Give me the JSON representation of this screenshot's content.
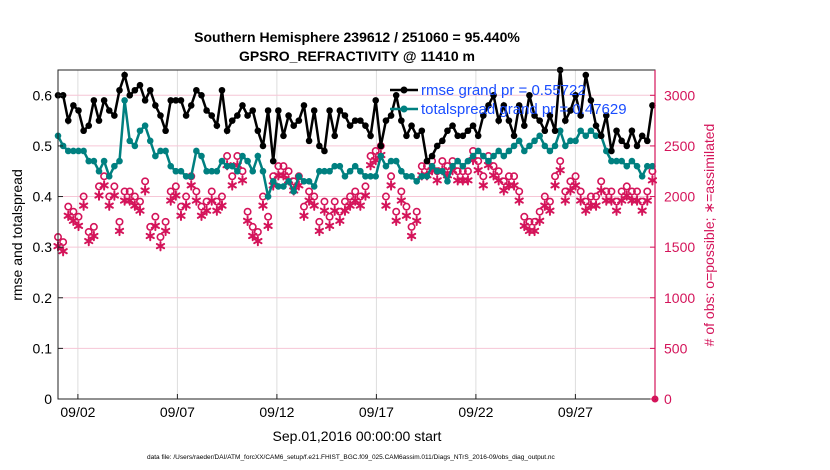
{
  "chart_data": {
    "type": "line",
    "title_line1": "Southern Hemisphere 239612 / 251060 = 95.440%",
    "title_line2": "GPSRO_REFRACTIVITY @ 11410 m",
    "xlabel": "Sep.01,2016 00:00:00 start",
    "ylabel_left": "rmse and totalspread",
    "ylabel_right": "# of obs: o=possible; ∗=assimilated",
    "xlim_days": [
      0,
      30
    ],
    "ylim_left": [
      0,
      0.65
    ],
    "ylim_right": [
      0,
      3250
    ],
    "x_tick_days": [
      1,
      6,
      11,
      16,
      21,
      26
    ],
    "x_tick_labels": [
      "09/02",
      "09/07",
      "09/12",
      "09/17",
      "09/22",
      "09/27"
    ],
    "y_left_ticks": [
      "0",
      "0.1",
      "0.2",
      "0.3",
      "0.4",
      "0.5",
      "0.6"
    ],
    "y_right_ticks": [
      "0",
      "500",
      "1000",
      "1500",
      "2000",
      "2500",
      "3000"
    ],
    "grid": "on",
    "legend_position": "top-right",
    "legend": [
      "rmse grand pr = 0.55722",
      "totalspread grand pr = 0.47629"
    ],
    "x_step_days": 0.2575,
    "colors": {
      "rmse": "#000000",
      "totalspread": "#008080",
      "obs": "#d4145a",
      "legend_text": "#1a4dff"
    },
    "series": [
      {
        "name": "rmse",
        "values": [
          0.6,
          0.6,
          0.55,
          0.58,
          0.57,
          0.53,
          0.54,
          0.59,
          0.55,
          0.59,
          0.57,
          0.56,
          0.61,
          0.64,
          0.6,
          0.61,
          0.62,
          0.59,
          0.61,
          0.58,
          0.56,
          0.53,
          0.59,
          0.59,
          0.59,
          0.56,
          0.58,
          0.61,
          0.6,
          0.57,
          0.56,
          0.54,
          0.61,
          0.53,
          0.55,
          0.56,
          0.58,
          0.56,
          0.57,
          0.53,
          0.5,
          0.57,
          0.47,
          0.57,
          0.52,
          0.56,
          0.54,
          0.55,
          0.58,
          0.51,
          0.57,
          0.5,
          0.49,
          0.57,
          0.52,
          0.57,
          0.56,
          0.54,
          0.55,
          0.55,
          0.54,
          0.52,
          0.59,
          0.5,
          0.55,
          0.56,
          0.6,
          0.55,
          0.52,
          0.54,
          0.52,
          0.53,
          0.47,
          0.48,
          0.5,
          0.51,
          0.53,
          0.54,
          0.52,
          0.52,
          0.53,
          0.54,
          0.52,
          0.56,
          0.58,
          0.6,
          0.55,
          0.58,
          0.55,
          0.52,
          0.58,
          0.54,
          0.6,
          0.56,
          0.55,
          0.53,
          0.56,
          0.53,
          0.65,
          0.55,
          0.57,
          0.6,
          0.56,
          0.64,
          0.59,
          0.54,
          0.52,
          0.56,
          0.49,
          0.53,
          0.51,
          0.5,
          0.53,
          0.5,
          0.52,
          0.51,
          0.58
        ]
      },
      {
        "name": "totalspread",
        "values": [
          0.52,
          0.5,
          0.49,
          0.49,
          0.49,
          0.49,
          0.47,
          0.47,
          0.45,
          0.47,
          0.44,
          0.46,
          0.47,
          0.59,
          0.51,
          0.5,
          0.53,
          0.54,
          0.51,
          0.48,
          0.49,
          0.49,
          0.46,
          0.45,
          0.45,
          0.44,
          0.44,
          0.49,
          0.48,
          0.45,
          0.45,
          0.45,
          0.47,
          0.46,
          0.46,
          0.45,
          0.48,
          0.47,
          0.45,
          0.48,
          0.45,
          0.4,
          0.43,
          0.42,
          0.42,
          0.43,
          0.41,
          0.44,
          0.43,
          0.43,
          0.42,
          0.45,
          0.45,
          0.45,
          0.46,
          0.46,
          0.44,
          0.45,
          0.46,
          0.45,
          0.44,
          0.44,
          0.44,
          0.48,
          0.46,
          0.47,
          0.47,
          0.45,
          0.44,
          0.44,
          0.43,
          0.44,
          0.44,
          0.46,
          0.45,
          0.45,
          0.43,
          0.46,
          0.47,
          0.46,
          0.47,
          0.48,
          0.49,
          0.48,
          0.47,
          0.48,
          0.49,
          0.48,
          0.49,
          0.5,
          0.51,
          0.49,
          0.5,
          0.51,
          0.52,
          0.5,
          0.49,
          0.5,
          0.53,
          0.5,
          0.51,
          0.51,
          0.53,
          0.52,
          0.53,
          0.52,
          0.52,
          0.49,
          0.47,
          0.47,
          0.47,
          0.46,
          0.47,
          0.46,
          0.44,
          0.46,
          0.46
        ]
      },
      {
        "name": "possible",
        "values": [
          1600,
          1550,
          1900,
          1850,
          1800,
          2000,
          1650,
          1700,
          2100,
          2200,
          2000,
          2100,
          1750,
          2050,
          2050,
          2000,
          1950,
          2150,
          1700,
          1800,
          1600,
          1750,
          2050,
          2100,
          1900,
          2000,
          2200,
          2050,
          1900,
          1950,
          2050,
          1950,
          2000,
          2400,
          2200,
          2400,
          2250,
          1850,
          1700,
          1650,
          2000,
          1800,
          2200,
          2300,
          2300,
          2250,
          2150,
          2200,
          1900,
          2050,
          2000,
          1750,
          1950,
          1800,
          1950,
          1850,
          1950,
          2000,
          2050,
          2000,
          2100,
          2400,
          2450,
          2500,
          2000,
          2200,
          1850,
          2050,
          1900,
          1700,
          1850,
          2300,
          2300,
          2350,
          2250,
          2350,
          2300,
          2350,
          2250,
          2250,
          2250,
          2450,
          2350,
          2200,
          2400,
          2300,
          2250,
          2150,
          2200,
          2200,
          2050,
          1800,
          1750,
          1750,
          1850,
          2000,
          1950,
          2200,
          2350,
          2050,
          2150,
          2200,
          2050,
          1950,
          2000,
          2000,
          2150,
          2050,
          2050,
          1950,
          2050,
          2100,
          2050,
          2050,
          1950,
          2050,
          2250
        ]
      },
      {
        "name": "assimilated",
        "values": [
          1510,
          1460,
          1810,
          1760,
          1710,
          1910,
          1560,
          1610,
          2010,
          2110,
          1910,
          2010,
          1660,
          1960,
          1960,
          1910,
          1860,
          2060,
          1610,
          1710,
          1510,
          1660,
          1960,
          2010,
          1810,
          1910,
          2110,
          1960,
          1810,
          1860,
          1960,
          1860,
          1910,
          2310,
          2110,
          2310,
          2160,
          1760,
          1610,
          1560,
          1910,
          1710,
          2110,
          2210,
          2210,
          2160,
          2060,
          2110,
          1810,
          1960,
          1910,
          1660,
          1860,
          1710,
          1860,
          1760,
          1860,
          1910,
          1960,
          1910,
          2010,
          2310,
          2360,
          2410,
          1910,
          2110,
          1760,
          1960,
          1810,
          1610,
          1760,
          2210,
          2210,
          2260,
          2160,
          2260,
          2210,
          2260,
          2160,
          2160,
          2160,
          2360,
          2260,
          2110,
          2310,
          2210,
          2160,
          2060,
          2110,
          2110,
          1960,
          1710,
          1660,
          1660,
          1760,
          1910,
          1860,
          2110,
          2260,
          1960,
          2060,
          2110,
          1960,
          1860,
          1910,
          1910,
          2060,
          1960,
          1960,
          1860,
          1960,
          2010,
          1960,
          1960,
          1860,
          1960,
          2160
        ]
      }
    ],
    "final_point": {
      "day": 30,
      "possible": 0,
      "assimilated": 0
    }
  },
  "footer": "data file: /Users/raeder/DAI/ATM_forcXX/CAM6_setup/f.e21.FHIST_BGC.f09_025.CAM6assim.011/Diags_NTrS_2016-09/obs_diag_output.nc"
}
